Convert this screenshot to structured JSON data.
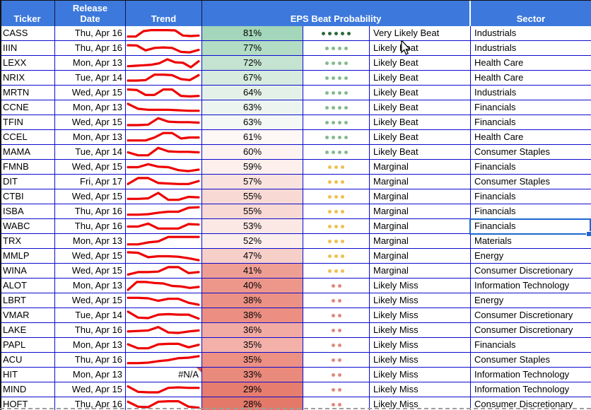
{
  "header": {
    "ticker": "Ticker",
    "release_line1": "Release",
    "release_line2": "Date",
    "trend": "Trend",
    "eps": "EPS Beat Probability",
    "sector": "Sector"
  },
  "colors": {
    "header_bg": "#3d79dc",
    "grid_border": "#0b0bcf",
    "sparkline_red": "#ee0000",
    "selection_blue": "#1a67d2",
    "note_triangle_red": "#d85345",
    "dot_colors": {
      "Very Likely Beat": "#2f6b3a",
      "Likely Beat": "#84ba8e",
      "Marginal": "#efbf4f",
      "Likely Miss": "#e08980"
    }
  },
  "dot_counts": {
    "Very Likely Beat": 5,
    "Likely Beat": 4,
    "Marginal": 3,
    "Likely Miss": 2
  },
  "selection": {
    "ticker": "WABC",
    "column": "Sector",
    "value": "Financials"
  },
  "trend_na_text": "#N/A",
  "rows": [
    {
      "ticker": "CASS",
      "date": "Thu, Apr 16",
      "pct": "81%",
      "pct_color": "#a3d6ba",
      "rating": "Very Likely Beat",
      "sector": "Industrials",
      "trend": [
        0.2,
        0.2,
        0.75,
        0.85,
        0.85,
        0.85,
        0.82,
        0.3,
        0.25,
        0.3
      ]
    },
    {
      "ticker": "IIIN",
      "date": "Thu, Apr 16",
      "pct": "77%",
      "pct_color": "#b2dcc4",
      "rating": "Likely Beat",
      "sector": "Industrials",
      "trend": [
        0.82,
        0.8,
        0.3,
        0.55,
        0.6,
        0.55,
        0.15,
        0.1,
        0.35
      ]
    },
    {
      "ticker": "LEXX",
      "date": "Mon, Apr 13",
      "pct": "72%",
      "pct_color": "#c4e3d1",
      "rating": "Likely Beat",
      "sector": "Health Care",
      "trend": [
        0.2,
        0.25,
        0.3,
        0.35,
        0.5,
        0.9,
        0.6,
        0.55,
        0.1,
        0.7
      ]
    },
    {
      "ticker": "NRIX",
      "date": "Tue, Apr 14",
      "pct": "67%",
      "pct_color": "#d7ebdf",
      "rating": "Likely Beat",
      "sector": "Health Care",
      "trend": [
        0.25,
        0.25,
        0.3,
        0.85,
        0.85,
        0.8,
        0.4,
        0.3,
        0.8
      ]
    },
    {
      "ticker": "MRTN",
      "date": "Wed, Apr 15",
      "pct": "64%",
      "pct_color": "#e4f1e8",
      "rating": "Likely Beat",
      "sector": "Industrials",
      "trend": [
        0.85,
        0.8,
        0.3,
        0.3,
        0.85,
        0.85,
        0.2,
        0.15,
        0.2
      ]
    },
    {
      "ticker": "CCNE",
      "date": "Mon, Apr 13",
      "pct": "63%",
      "pct_color": "#ecf5ef",
      "rating": "Likely Beat",
      "sector": "Financials",
      "trend": [
        0.9,
        0.4,
        0.3,
        0.3,
        0.3,
        0.25,
        0.2,
        0.2
      ]
    },
    {
      "ticker": "TFIN",
      "date": "Wed, Apr 15",
      "pct": "63%",
      "pct_color": "#f4f9f5",
      "rating": "Likely Beat",
      "sector": "Financials",
      "trend": [
        0.25,
        0.25,
        0.3,
        0.95,
        0.6,
        0.55,
        0.55,
        0.5
      ]
    },
    {
      "ticker": "CCEL",
      "date": "Mon, Apr 13",
      "pct": "61%",
      "pct_color": "#fdf7f6",
      "rating": "Likely Beat",
      "sector": "Health Care",
      "trend": [
        0.2,
        0.2,
        0.2,
        0.5,
        0.95,
        0.95,
        0.4,
        0.5,
        0.5
      ]
    },
    {
      "ticker": "MAMA",
      "date": "Tue, Apr 14",
      "pct": "60%",
      "pct_color": "#fdf3f1",
      "rating": "Likely Beat",
      "sector": "Consumer Staples",
      "trend": [
        0.5,
        0.2,
        0.2,
        0.95,
        0.6,
        0.55,
        0.55,
        0.5
      ]
    },
    {
      "ticker": "FMNB",
      "date": "Wed, Apr 15",
      "pct": "59%",
      "pct_color": "#fcefec",
      "rating": "Marginal",
      "sector": "Financials",
      "trend": [
        0.5,
        0.5,
        0.8,
        0.55,
        0.5,
        0.2,
        0.1,
        0.25
      ]
    },
    {
      "ticker": "DIT",
      "date": "Fri, Apr 17",
      "pct": "57%",
      "pct_color": "#fae3df",
      "rating": "Marginal",
      "sector": "Consumer Staples",
      "trend": [
        0.3,
        0.9,
        0.9,
        0.4,
        0.35,
        0.3,
        0.3,
        0.6
      ]
    },
    {
      "ticker": "CTBI",
      "date": "Wed, Apr 15",
      "pct": "55%",
      "pct_color": "#f8d9d4",
      "rating": "Marginal",
      "sector": "Financials",
      "trend": [
        0.3,
        0.3,
        0.35,
        0.9,
        0.2,
        0.2,
        0.5,
        0.45
      ]
    },
    {
      "ticker": "ISBA",
      "date": "Thu, Apr 16",
      "pct": "55%",
      "pct_color": "#f8d9d4",
      "rating": "Marginal",
      "sector": "Financials",
      "trend": [
        0.2,
        0.2,
        0.25,
        0.4,
        0.5,
        0.5,
        0.9,
        0.95
      ]
    },
    {
      "ticker": "WABC",
      "date": "Thu, Apr 16",
      "pct": "53%",
      "pct_color": "#fbe7e4",
      "rating": "Marginal",
      "sector": "Financials",
      "trend": [
        0.5,
        0.5,
        0.8,
        0.3,
        0.3,
        0.3,
        0.75,
        0.7
      ]
    },
    {
      "ticker": "TRX",
      "date": "Mon, Apr 13",
      "pct": "52%",
      "pct_color": "#fdeeec",
      "rating": "Marginal",
      "sector": "Materials",
      "trend": [
        0.2,
        0.2,
        0.4,
        0.5,
        0.95,
        0.95,
        0.95,
        0.95
      ]
    },
    {
      "ticker": "MMLP",
      "date": "Wed, Apr 15",
      "pct": "47%",
      "pct_color": "#f6cfc9",
      "rating": "Marginal",
      "sector": "Energy",
      "trend": [
        0.9,
        0.85,
        0.4,
        0.5,
        0.5,
        0.45,
        0.3,
        0.1
      ]
    },
    {
      "ticker": "WINA",
      "date": "Wed, Apr 15",
      "pct": "41%",
      "pct_color": "#ee9e93",
      "rating": "Marginal",
      "sector": "Consumer Discretionary",
      "trend": [
        0.15,
        0.4,
        0.4,
        0.45,
        0.9,
        0.9,
        0.3,
        0.4
      ]
    },
    {
      "ticker": "ALOT",
      "date": "Mon, Apr 13",
      "pct": "40%",
      "pct_color": "#ed978b",
      "rating": "Likely Miss",
      "sector": "Information Technology",
      "trend": [
        0.1,
        0.9,
        0.9,
        0.8,
        0.75,
        0.5,
        0.45,
        0.3,
        0.4
      ]
    },
    {
      "ticker": "LBRT",
      "date": "Wed, Apr 15",
      "pct": "38%",
      "pct_color": "#ec9185",
      "rating": "Likely Miss",
      "sector": "Energy",
      "trend": [
        0.8,
        0.8,
        0.75,
        0.5,
        0.7,
        0.7,
        0.3,
        0.1
      ]
    },
    {
      "ticker": "VMAR",
      "date": "Tue, Apr 14",
      "pct": "38%",
      "pct_color": "#ec8f82",
      "rating": "Likely Miss",
      "sector": "Consumer Discretionary",
      "trend": [
        0.9,
        0.3,
        0.25,
        0.6,
        0.65,
        0.6,
        0.6,
        0.2
      ]
    },
    {
      "ticker": "LAKE",
      "date": "Thu, Apr 16",
      "pct": "36%",
      "pct_color": "#f2aba3",
      "rating": "Likely Miss",
      "sector": "Consumer Discretionary",
      "trend": [
        0.4,
        0.45,
        0.5,
        0.85,
        0.3,
        0.25,
        0.4,
        0.5
      ]
    },
    {
      "ticker": "PAPL",
      "date": "Mon, Apr 13",
      "pct": "35%",
      "pct_color": "#f3b1a9",
      "rating": "Likely Miss",
      "sector": "Financials",
      "trend": [
        0.6,
        0.2,
        0.2,
        0.6,
        0.65,
        0.65,
        0.3,
        0.55
      ]
    },
    {
      "ticker": "ACU",
      "date": "Thu, Apr 16",
      "pct": "35%",
      "pct_color": "#ec9184",
      "rating": "Likely Miss",
      "sector": "Consumer Staples",
      "trend": [
        0.2,
        0.2,
        0.25,
        0.4,
        0.5,
        0.7,
        0.75,
        0.9
      ]
    },
    {
      "ticker": "HIT",
      "date": "Mon, Apr 13",
      "pct": "33%",
      "pct_color": "#ea8a7c",
      "rating": "Likely Miss",
      "sector": "Information Technology",
      "trend": null,
      "trend_na": true
    },
    {
      "ticker": "MIND",
      "date": "Wed, Apr 15",
      "pct": "29%",
      "pct_color": "#e67d6e",
      "rating": "Likely Miss",
      "sector": "Information Technology",
      "trend": [
        0.85,
        0.3,
        0.25,
        0.25,
        0.7,
        0.75,
        0.7,
        0.7
      ]
    },
    {
      "ticker": "HOFT",
      "date": "Thu, Apr 16",
      "pct": "28%",
      "pct_color": "#e57969",
      "rating": "Likely Miss",
      "sector": "Consumer Discretionary",
      "trend": [
        0.8,
        0.3,
        0.25,
        0.8,
        0.85,
        0.85,
        0.3,
        0.2
      ]
    }
  ]
}
